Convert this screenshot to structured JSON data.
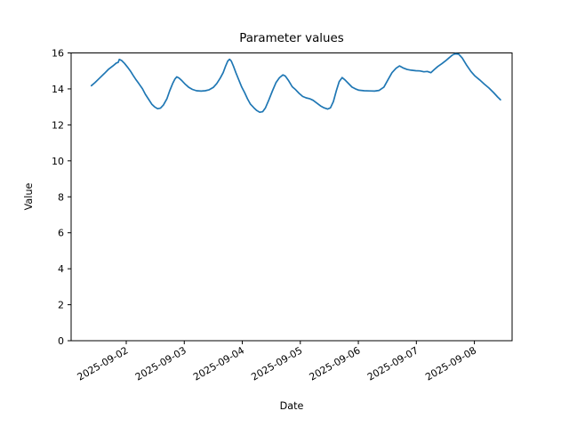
{
  "figure": {
    "background_color": "#ffffff",
    "text_color": "#000000"
  },
  "chart_data": {
    "type": "line",
    "title": "Parameter values",
    "xlabel": "Date",
    "ylabel": "Value",
    "line_color": "#1f77b4",
    "legend": null,
    "grid": false,
    "ylim": [
      0,
      16
    ],
    "yticks": [
      0,
      2,
      4,
      6,
      8,
      10,
      12,
      14,
      16
    ],
    "xlim": [
      0.05,
      7.65
    ],
    "xtick_rotation_deg": 30,
    "xticks": [
      {
        "pos": 1,
        "label": "2025-09-02"
      },
      {
        "pos": 2,
        "label": "2025-09-03"
      },
      {
        "pos": 3,
        "label": "2025-09-04"
      },
      {
        "pos": 4,
        "label": "2025-09-05"
      },
      {
        "pos": 5,
        "label": "2025-09-06"
      },
      {
        "pos": 6,
        "label": "2025-09-07"
      },
      {
        "pos": 7,
        "label": "2025-09-08"
      }
    ],
    "series": [
      {
        "name": "parameter-values",
        "points": [
          [
            0.4,
            14.18
          ],
          [
            0.46,
            14.35
          ],
          [
            0.54,
            14.6
          ],
          [
            0.62,
            14.85
          ],
          [
            0.69,
            15.08
          ],
          [
            0.77,
            15.28
          ],
          [
            0.83,
            15.44
          ],
          [
            0.86,
            15.47
          ],
          [
            0.88,
            15.64
          ],
          [
            0.92,
            15.58
          ],
          [
            0.97,
            15.42
          ],
          [
            1.02,
            15.22
          ],
          [
            1.07,
            15.0
          ],
          [
            1.12,
            14.75
          ],
          [
            1.17,
            14.5
          ],
          [
            1.22,
            14.28
          ],
          [
            1.28,
            14.0
          ],
          [
            1.33,
            13.7
          ],
          [
            1.39,
            13.4
          ],
          [
            1.44,
            13.15
          ],
          [
            1.49,
            13.0
          ],
          [
            1.54,
            12.9
          ],
          [
            1.59,
            12.93
          ],
          [
            1.64,
            13.1
          ],
          [
            1.7,
            13.45
          ],
          [
            1.75,
            13.9
          ],
          [
            1.8,
            14.3
          ],
          [
            1.84,
            14.55
          ],
          [
            1.87,
            14.67
          ],
          [
            1.91,
            14.6
          ],
          [
            1.96,
            14.45
          ],
          [
            2.02,
            14.25
          ],
          [
            2.08,
            14.08
          ],
          [
            2.14,
            13.97
          ],
          [
            2.21,
            13.9
          ],
          [
            2.29,
            13.88
          ],
          [
            2.36,
            13.9
          ],
          [
            2.43,
            13.95
          ],
          [
            2.5,
            14.08
          ],
          [
            2.56,
            14.3
          ],
          [
            2.62,
            14.6
          ],
          [
            2.67,
            14.9
          ],
          [
            2.71,
            15.25
          ],
          [
            2.75,
            15.55
          ],
          [
            2.78,
            15.65
          ],
          [
            2.81,
            15.55
          ],
          [
            2.85,
            15.25
          ],
          [
            2.89,
            14.9
          ],
          [
            2.94,
            14.5
          ],
          [
            2.99,
            14.1
          ],
          [
            3.04,
            13.8
          ],
          [
            3.09,
            13.45
          ],
          [
            3.14,
            13.15
          ],
          [
            3.2,
            12.95
          ],
          [
            3.25,
            12.8
          ],
          [
            3.3,
            12.7
          ],
          [
            3.35,
            12.73
          ],
          [
            3.4,
            12.95
          ],
          [
            3.46,
            13.4
          ],
          [
            3.52,
            13.9
          ],
          [
            3.58,
            14.35
          ],
          [
            3.64,
            14.62
          ],
          [
            3.7,
            14.78
          ],
          [
            3.74,
            14.72
          ],
          [
            3.8,
            14.45
          ],
          [
            3.86,
            14.12
          ],
          [
            3.92,
            13.95
          ],
          [
            3.98,
            13.75
          ],
          [
            4.04,
            13.58
          ],
          [
            4.1,
            13.5
          ],
          [
            4.16,
            13.46
          ],
          [
            4.22,
            13.37
          ],
          [
            4.28,
            13.22
          ],
          [
            4.35,
            13.05
          ],
          [
            4.41,
            12.95
          ],
          [
            4.47,
            12.88
          ],
          [
            4.52,
            12.95
          ],
          [
            4.57,
            13.3
          ],
          [
            4.62,
            13.9
          ],
          [
            4.67,
            14.4
          ],
          [
            4.72,
            14.63
          ],
          [
            4.77,
            14.5
          ],
          [
            4.83,
            14.3
          ],
          [
            4.89,
            14.1
          ],
          [
            4.95,
            14.0
          ],
          [
            5.01,
            13.93
          ],
          [
            5.1,
            13.9
          ],
          [
            5.19,
            13.89
          ],
          [
            5.28,
            13.88
          ],
          [
            5.36,
            13.92
          ],
          [
            5.44,
            14.1
          ],
          [
            5.51,
            14.5
          ],
          [
            5.58,
            14.9
          ],
          [
            5.65,
            15.15
          ],
          [
            5.71,
            15.28
          ],
          [
            5.77,
            15.17
          ],
          [
            5.84,
            15.08
          ],
          [
            5.91,
            15.04
          ],
          [
            5.99,
            15.01
          ],
          [
            6.06,
            15.0
          ],
          [
            6.13,
            14.95
          ],
          [
            6.19,
            14.97
          ],
          [
            6.25,
            14.9
          ],
          [
            6.31,
            15.08
          ],
          [
            6.37,
            15.25
          ],
          [
            6.44,
            15.4
          ],
          [
            6.5,
            15.55
          ],
          [
            6.56,
            15.72
          ],
          [
            6.62,
            15.88
          ],
          [
            6.67,
            15.95
          ],
          [
            6.73,
            15.93
          ],
          [
            6.79,
            15.72
          ],
          [
            6.86,
            15.35
          ],
          [
            6.94,
            14.97
          ],
          [
            7.01,
            14.72
          ],
          [
            7.09,
            14.5
          ],
          [
            7.17,
            14.27
          ],
          [
            7.25,
            14.05
          ],
          [
            7.33,
            13.8
          ],
          [
            7.4,
            13.55
          ],
          [
            7.45,
            13.4
          ]
        ]
      }
    ]
  }
}
